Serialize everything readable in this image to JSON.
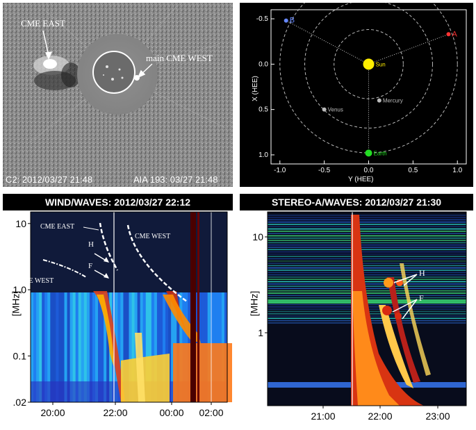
{
  "panel_a": {
    "cme_east": "CME EAST",
    "main_cme_west": "main CME WEST",
    "c2_stamp": "C2: 2012/03/27 21:48",
    "aia_stamp": "AIA 193: 03/27 21:48"
  },
  "panel_b": {
    "x_axis_label": "Y (HEE)",
    "y_axis_label": "X (HEE)",
    "x_ticks": [
      "-1.0",
      "-0.5",
      "0.0",
      "0.5",
      "1.0"
    ],
    "y_ticks": [
      "-0.5",
      "0.0",
      "0.5",
      "1.0"
    ],
    "bodies": [
      {
        "name": "Sun",
        "y": 0.0,
        "x": 0.0,
        "color": "#ffee00"
      },
      {
        "name": "Mercury",
        "y": 0.12,
        "x": 0.4,
        "color": "#bbbbbb"
      },
      {
        "name": "Venus",
        "y": -0.5,
        "x": 0.5,
        "color": "#bbbbbb"
      },
      {
        "name": "Earth",
        "y": 0.0,
        "x": 0.98,
        "color": "#22dd22"
      },
      {
        "name": "B",
        "y": -0.93,
        "x": -0.48,
        "color": "#6688ff"
      },
      {
        "name": "A",
        "y": 0.9,
        "x": -0.33,
        "color": "#ff3333"
      }
    ],
    "orbit_radii": [
      0.39,
      0.72,
      1.0
    ]
  },
  "panel_c": {
    "title": "WIND/WAVES: 2012/03/27 22:12",
    "y_axis_label": "[MHz]",
    "y_ticks": [
      "10",
      "1.0",
      "0.1",
      ".02"
    ],
    "x_ticks": [
      "20:00",
      "22:00",
      "00:00",
      "02:00"
    ],
    "annotations": {
      "cme_east": "CME EAST",
      "cme_west_upper": "CME WEST",
      "cme_west_lower": "CME WEST",
      "h": "H",
      "f": "F"
    }
  },
  "panel_d": {
    "title": "STEREO-A/WAVES: 2012/03/27 21:30",
    "y_axis_label": "[MHz]",
    "y_ticks": [
      "10",
      "1"
    ],
    "x_ticks": [
      "21:00",
      "22:00",
      "23:00"
    ],
    "annotations": {
      "h": "H",
      "f": "F"
    }
  }
}
